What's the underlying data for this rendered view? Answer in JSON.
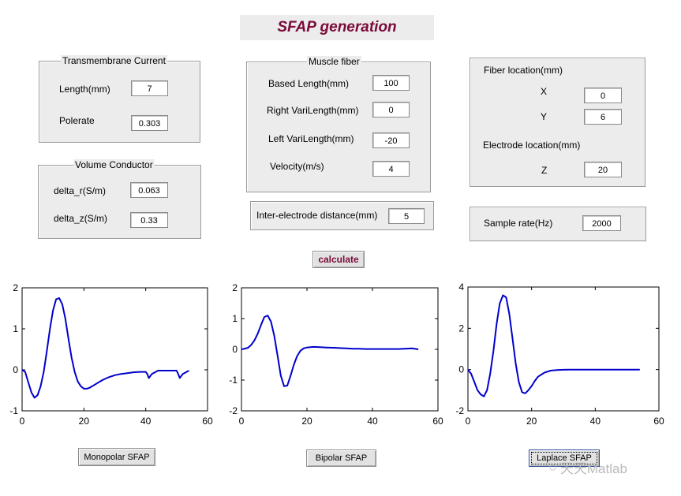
{
  "title": "SFAP generation",
  "transmembrane": {
    "title": "Transmembrane Current",
    "length_label": "Length(mm)",
    "length_value": "7",
    "polerate_label": "Polerate",
    "polerate_value": "0.303"
  },
  "volume": {
    "title": "Volume Conductor",
    "dr_label": "delta_r(S/m)",
    "dr_value": "0.063",
    "dz_label": "delta_z(S/m)",
    "dz_value": "0.33"
  },
  "fiber": {
    "title": "Muscle fiber",
    "based_label": "Based Length(mm)",
    "based_value": "100",
    "right_label": "Right VariLength(mm)",
    "right_value": "0",
    "left_label": "Left VariLength(mm)",
    "left_value": "-20",
    "velocity_label": "Velocity(m/s)",
    "velocity_value": "4"
  },
  "inter": {
    "label": "Inter-electrode distance(mm)",
    "value": "5"
  },
  "location": {
    "fiber_label": "Fiber location(mm)",
    "x_label": "X",
    "x_value": "0",
    "y_label": "Y",
    "y_value": "6",
    "electrode_label": "Electrode location(mm)",
    "z_label": "Z",
    "z_value": "20"
  },
  "sample": {
    "label": "Sample rate(Hz)",
    "value": "2000"
  },
  "calculate_label": "calculate",
  "buttons": {
    "monopolar": "Monopolar SFAP",
    "bipolar": "Bipolar SFAP",
    "laplace": "Laplace SFAP"
  },
  "watermark": "天天Matlab",
  "colors": {
    "accent": "#7a0b3a",
    "line": "#0000cc",
    "panel": "#ececec"
  },
  "chart_data": [
    {
      "type": "line",
      "xlim": [
        0,
        60
      ],
      "ylim": [
        -1,
        2
      ],
      "xticks": [
        "0",
        "20",
        "40",
        "60"
      ],
      "yticks": [
        "-1",
        "0",
        "1",
        "2"
      ],
      "x": [
        0,
        1,
        2,
        3,
        4,
        5,
        6,
        7,
        8,
        9,
        10,
        11,
        12,
        13,
        14,
        15,
        16,
        17,
        18,
        19,
        20,
        21,
        22,
        24,
        26,
        28,
        30,
        32,
        34,
        36,
        38,
        40,
        40.5,
        41,
        42,
        44,
        46,
        48,
        50,
        50.5,
        51,
        52,
        54
      ],
      "y": [
        0,
        -0.05,
        -0.3,
        -0.55,
        -0.68,
        -0.62,
        -0.4,
        -0.05,
        0.45,
        1.0,
        1.45,
        1.72,
        1.75,
        1.6,
        1.25,
        0.75,
        0.3,
        -0.05,
        -0.28,
        -0.4,
        -0.46,
        -0.46,
        -0.43,
        -0.34,
        -0.25,
        -0.18,
        -0.13,
        -0.1,
        -0.08,
        -0.06,
        -0.05,
        -0.05,
        -0.1,
        -0.2,
        -0.1,
        -0.02,
        -0.02,
        -0.02,
        -0.02,
        -0.1,
        -0.2,
        -0.1,
        -0.02
      ]
    },
    {
      "type": "line",
      "xlim": [
        0,
        60
      ],
      "ylim": [
        -2,
        2
      ],
      "xticks": [
        "0",
        "20",
        "40",
        "60"
      ],
      "yticks": [
        "-2",
        "-1",
        "0",
        "1",
        "2"
      ],
      "x": [
        0,
        1,
        2,
        3,
        4,
        5,
        6,
        7,
        8,
        9,
        10,
        11,
        12,
        13,
        14,
        15,
        16,
        17,
        18,
        19,
        20,
        21,
        22,
        24,
        26,
        28,
        30,
        32,
        34,
        36,
        38,
        40,
        42,
        44,
        46,
        48,
        50,
        52,
        54
      ],
      "y": [
        0,
        0.02,
        0.05,
        0.15,
        0.3,
        0.52,
        0.8,
        1.05,
        1.1,
        0.9,
        0.45,
        -0.2,
        -0.85,
        -1.2,
        -1.18,
        -0.85,
        -0.5,
        -0.22,
        -0.05,
        0.03,
        0.06,
        0.07,
        0.08,
        0.07,
        0.06,
        0.05,
        0.04,
        0.03,
        0.02,
        0.02,
        0.01,
        0.01,
        0.01,
        0.01,
        0.01,
        0.01,
        0.02,
        0.03,
        0.0
      ]
    },
    {
      "type": "line",
      "xlim": [
        0,
        60
      ],
      "ylim": [
        -2,
        4
      ],
      "xticks": [
        "0",
        "20",
        "40",
        "60"
      ],
      "yticks": [
        "-2",
        "0",
        "2",
        "4"
      ],
      "x": [
        0,
        1,
        2,
        3,
        4,
        5,
        6,
        7,
        8,
        9,
        10,
        11,
        12,
        13,
        14,
        15,
        16,
        17,
        18,
        19,
        20,
        21,
        22,
        24,
        26,
        28,
        30,
        32,
        34,
        36,
        38,
        40,
        42,
        44,
        46,
        48,
        50,
        52,
        54
      ],
      "y": [
        0,
        -0.2,
        -0.6,
        -1.0,
        -1.2,
        -1.3,
        -1.0,
        -0.2,
        0.9,
        2.2,
        3.2,
        3.6,
        3.5,
        2.7,
        1.5,
        0.3,
        -0.6,
        -1.1,
        -1.15,
        -1.0,
        -0.8,
        -0.55,
        -0.35,
        -0.15,
        -0.05,
        -0.02,
        -0.01,
        0,
        0,
        0,
        0,
        0,
        0,
        0,
        0,
        0,
        0,
        0,
        0
      ]
    }
  ]
}
